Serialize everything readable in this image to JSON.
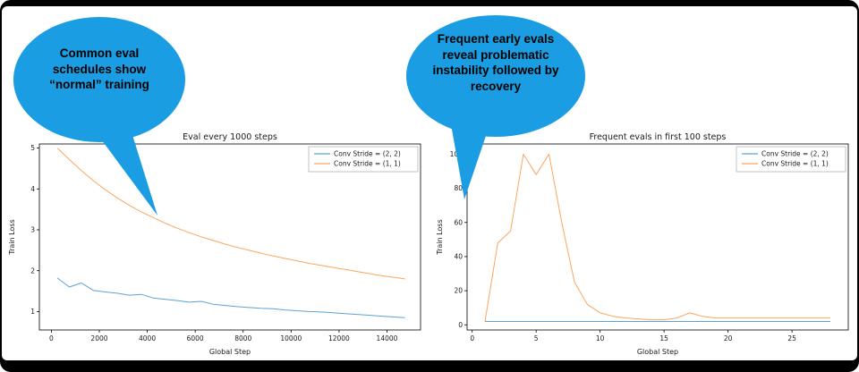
{
  "slide": {
    "background_color": "#ffffff",
    "frame_color": "#000000"
  },
  "bubbles": [
    {
      "text": "Common eval schedules show “normal” training",
      "color": "#1a9de2"
    },
    {
      "text": "Frequent early evals reveal problematic instability followed by recovery",
      "color": "#1a9de2"
    }
  ],
  "chart_data": [
    {
      "type": "line",
      "title": "Eval every 1000 steps",
      "xlabel": "Global Step",
      "ylabel": "Train Loss",
      "xlim": [
        -500,
        15400
      ],
      "ylim": [
        0.55,
        5.1
      ],
      "xticks": [
        0,
        2000,
        4000,
        6000,
        8000,
        10000,
        12000,
        14000
      ],
      "yticks": [
        1,
        2,
        3,
        4,
        5
      ],
      "grid": false,
      "legend_position": "upper right",
      "series": [
        {
          "name": "Conv Stride =  (2, 2)",
          "color": "#5ba3d6",
          "x": [
            250,
            750,
            1250,
            1750,
            2250,
            2750,
            3250,
            3750,
            4250,
            4750,
            5250,
            5750,
            6250,
            6750,
            7250,
            7750,
            8250,
            8750,
            9250,
            9750,
            10250,
            10750,
            11250,
            11750,
            12250,
            12750,
            13250,
            13750,
            14250,
            14750
          ],
          "y": [
            1.82,
            1.6,
            1.7,
            1.52,
            1.48,
            1.45,
            1.4,
            1.42,
            1.33,
            1.3,
            1.27,
            1.23,
            1.25,
            1.18,
            1.15,
            1.12,
            1.1,
            1.08,
            1.07,
            1.04,
            1.02,
            1.0,
            0.99,
            0.97,
            0.95,
            0.93,
            0.91,
            0.89,
            0.87,
            0.85
          ]
        },
        {
          "name": "Conv Stride =  (1, 1)",
          "color": "#fca55d",
          "x": [
            250,
            750,
            1250,
            1750,
            2250,
            2750,
            3250,
            3750,
            4250,
            4750,
            5250,
            5750,
            6250,
            6750,
            7250,
            7750,
            8250,
            8750,
            9250,
            9750,
            10250,
            10750,
            11250,
            11750,
            12250,
            12750,
            13250,
            13750,
            14250,
            14750
          ],
          "y": [
            5.0,
            4.72,
            4.45,
            4.2,
            3.98,
            3.78,
            3.6,
            3.44,
            3.3,
            3.16,
            3.04,
            2.93,
            2.83,
            2.74,
            2.65,
            2.57,
            2.5,
            2.43,
            2.36,
            2.3,
            2.24,
            2.18,
            2.13,
            2.08,
            2.03,
            1.98,
            1.93,
            1.88,
            1.84,
            1.8
          ]
        }
      ]
    },
    {
      "type": "line",
      "title": "Frequent evals in first 100 steps",
      "xlabel": "Global Step",
      "ylabel": "Train Loss",
      "xlim": [
        -0.4,
        29.4
      ],
      "ylim": [
        -3,
        106
      ],
      "xticks": [
        0,
        5,
        10,
        15,
        20,
        25
      ],
      "yticks": [
        0,
        20,
        40,
        60,
        80,
        100
      ],
      "grid": false,
      "legend_position": "upper right",
      "series": [
        {
          "name": "Conv Stride =  (2, 2)",
          "color": "#5ba3d6",
          "x": [
            1,
            2,
            3,
            4,
            5,
            6,
            7,
            8,
            9,
            10,
            11,
            12,
            13,
            14,
            15,
            16,
            17,
            18,
            19,
            20,
            21,
            22,
            23,
            24,
            25,
            26,
            27,
            28
          ],
          "y": [
            2,
            2,
            2,
            2,
            2,
            2,
            2,
            2,
            2,
            2,
            2,
            2,
            2,
            2,
            2,
            2,
            2,
            2,
            2,
            2,
            2,
            2,
            2,
            2,
            2,
            2,
            2,
            2
          ]
        },
        {
          "name": "Conv Stride =  (1, 1)",
          "color": "#fca55d",
          "x": [
            1,
            2,
            3,
            4,
            5,
            6,
            7,
            8,
            9,
            10,
            11,
            12,
            13,
            14,
            15,
            16,
            17,
            18,
            19,
            20,
            21,
            22,
            23,
            24,
            25,
            26,
            27,
            28
          ],
          "y": [
            2,
            48,
            55,
            100,
            88,
            100,
            60,
            25,
            12,
            7,
            5,
            4,
            3.5,
            3,
            3,
            4,
            7,
            5,
            4,
            4,
            4,
            4,
            4,
            4,
            4,
            4,
            4,
            4
          ]
        }
      ]
    }
  ]
}
